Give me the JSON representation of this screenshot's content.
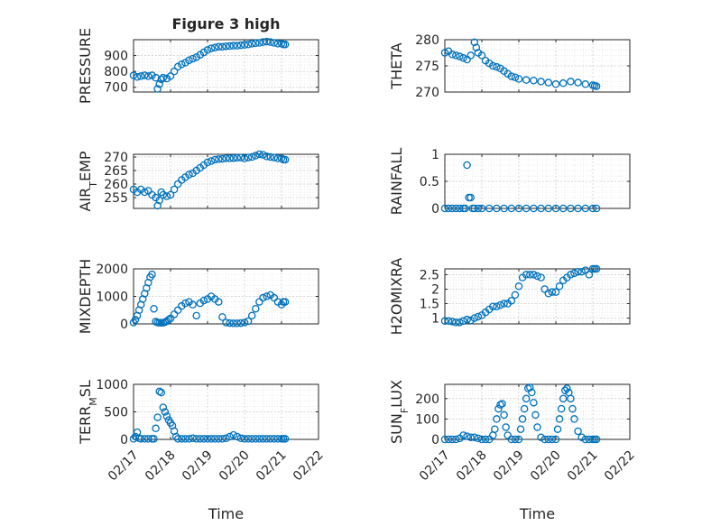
{
  "figure": {
    "colors": {
      "marker": "#0072BD",
      "grid": "#cfcfcf",
      "axis": "#262626"
    }
  },
  "chart_data": [
    {
      "type": "scatter",
      "title": "Figure 3 high",
      "ylabel": "PRESSURE",
      "xlabel": "",
      "ylim": [
        670,
        1000
      ],
      "yticks": [
        700,
        800,
        900
      ],
      "xlim": [
        0,
        5
      ],
      "xticklabels": [],
      "grid": true,
      "series": [
        {
          "marker": "circle",
          "x": [
            0,
            0.1,
            0.2,
            0.3,
            0.4,
            0.5,
            0.6,
            0.65,
            0.7,
            0.75,
            0.8,
            0.9,
            1.0,
            1.1,
            1.2,
            1.3,
            1.4,
            1.5,
            1.6,
            1.7,
            1.8,
            1.9,
            2.0,
            2.1,
            2.2,
            2.3,
            2.4,
            2.5,
            2.6,
            2.7,
            2.8,
            2.9,
            3.0,
            3.1,
            3.2,
            3.3,
            3.4,
            3.5,
            3.6,
            3.7,
            3.8,
            3.9,
            4.0,
            4.05,
            4.1
          ],
          "y": [
            775,
            765,
            770,
            775,
            770,
            775,
            760,
            690,
            720,
            750,
            760,
            755,
            770,
            800,
            830,
            845,
            855,
            870,
            880,
            890,
            905,
            920,
            935,
            945,
            950,
            955,
            955,
            958,
            960,
            962,
            962,
            965,
            967,
            970,
            975,
            978,
            980,
            985,
            988,
            985,
            980,
            975,
            975,
            970,
            970
          ]
        }
      ]
    },
    {
      "type": "scatter",
      "title": "",
      "ylabel": "THETA",
      "xlabel": "",
      "ylim": [
        270,
        280
      ],
      "yticks": [
        270,
        275,
        280
      ],
      "xlim": [
        0,
        5
      ],
      "xticklabels": [],
      "grid": true,
      "series": [
        {
          "marker": "circle",
          "x": [
            0,
            0.1,
            0.2,
            0.3,
            0.4,
            0.5,
            0.6,
            0.7,
            0.8,
            0.85,
            0.9,
            1.0,
            1.1,
            1.2,
            1.3,
            1.4,
            1.5,
            1.6,
            1.7,
            1.8,
            1.9,
            2.0,
            2.2,
            2.4,
            2.6,
            2.8,
            3.0,
            3.2,
            3.4,
            3.6,
            3.8,
            4.0,
            4.05,
            4.1
          ],
          "y": [
            277.5,
            277.8,
            277.2,
            277.0,
            276.8,
            276.5,
            276.2,
            277.0,
            279.5,
            278.5,
            277.5,
            277.0,
            276.0,
            275.5,
            275.0,
            274.8,
            274.5,
            274.0,
            273.5,
            273.0,
            272.8,
            272.5,
            272.3,
            272.2,
            272.0,
            271.8,
            271.5,
            271.7,
            272.0,
            271.8,
            271.5,
            271.3,
            271.2,
            271.1
          ]
        }
      ]
    },
    {
      "type": "scatter",
      "title": "",
      "ylabel": "AIR_TEMP",
      "xlabel": "",
      "ylim": [
        251,
        271
      ],
      "yticks": [
        255,
        260,
        265,
        270
      ],
      "xlim": [
        0,
        5
      ],
      "xticklabels": [],
      "grid": true,
      "series": [
        {
          "marker": "circle",
          "x": [
            0,
            0.1,
            0.2,
            0.3,
            0.4,
            0.5,
            0.6,
            0.65,
            0.7,
            0.75,
            0.8,
            0.9,
            1.0,
            1.1,
            1.2,
            1.3,
            1.4,
            1.5,
            1.6,
            1.7,
            1.8,
            1.9,
            2.0,
            2.1,
            2.2,
            2.3,
            2.4,
            2.5,
            2.6,
            2.7,
            2.8,
            2.9,
            3.0,
            3.1,
            3.2,
            3.3,
            3.4,
            3.5,
            3.6,
            3.7,
            3.8,
            3.9,
            4.0,
            4.05,
            4.1
          ],
          "y": [
            258,
            257,
            258,
            257,
            257.5,
            256,
            255,
            252,
            254,
            257,
            256,
            255.5,
            256,
            258,
            260,
            261.5,
            262.5,
            263.5,
            264,
            265,
            266,
            267,
            268,
            268.5,
            269,
            269.2,
            269.3,
            269.5,
            269.5,
            269.6,
            269.7,
            269.8,
            269.5,
            269.8,
            270,
            270.5,
            271,
            270.8,
            270.2,
            270,
            269.8,
            269.5,
            269.5,
            269,
            269
          ]
        }
      ]
    },
    {
      "type": "scatter",
      "title": "",
      "ylabel": "RAINFALL",
      "xlabel": "",
      "ylim": [
        0,
        1
      ],
      "yticks": [
        0,
        0.5,
        1
      ],
      "xlim": [
        0,
        5
      ],
      "xticklabels": [],
      "grid": true,
      "series": [
        {
          "marker": "circle",
          "x": [
            0,
            0.1,
            0.2,
            0.3,
            0.4,
            0.5,
            0.55,
            0.6,
            0.65,
            0.7,
            0.75,
            0.8,
            0.9,
            1.0,
            1.2,
            1.4,
            1.6,
            1.8,
            2.0,
            2.2,
            2.4,
            2.6,
            2.8,
            3.0,
            3.2,
            3.4,
            3.6,
            3.8,
            4.0,
            4.1
          ],
          "y": [
            0,
            0,
            0,
            0,
            0,
            0,
            0,
            0.8,
            0.2,
            0.2,
            0,
            0,
            0,
            0,
            0,
            0,
            0,
            0,
            0,
            0,
            0,
            0,
            0,
            0,
            0,
            0,
            0,
            0,
            0,
            0
          ]
        }
      ]
    },
    {
      "type": "scatter",
      "title": "",
      "ylabel": "MIXDEPTH",
      "xlabel": "",
      "ylim": [
        0,
        2000
      ],
      "yticks": [
        0,
        1000,
        2000
      ],
      "xlim": [
        0,
        5
      ],
      "xticklabels": [],
      "grid": true,
      "series": [
        {
          "marker": "circle",
          "x": [
            0,
            0.05,
            0.1,
            0.15,
            0.2,
            0.25,
            0.3,
            0.35,
            0.4,
            0.45,
            0.5,
            0.55,
            0.6,
            0.65,
            0.7,
            0.75,
            0.8,
            0.85,
            0.9,
            0.95,
            1.0,
            1.1,
            1.2,
            1.3,
            1.4,
            1.5,
            1.6,
            1.7,
            1.8,
            1.9,
            2.0,
            2.1,
            2.2,
            2.3,
            2.4,
            2.5,
            2.6,
            2.7,
            2.8,
            2.9,
            3.0,
            3.1,
            3.2,
            3.3,
            3.4,
            3.5,
            3.6,
            3.7,
            3.8,
            3.9,
            4.0,
            4.05,
            4.1
          ],
          "y": [
            50,
            150,
            300,
            500,
            700,
            900,
            1100,
            1300,
            1500,
            1700,
            1800,
            550,
            80,
            50,
            40,
            40,
            40,
            60,
            100,
            150,
            200,
            350,
            500,
            650,
            750,
            800,
            700,
            300,
            750,
            850,
            900,
            1000,
            900,
            800,
            250,
            50,
            30,
            20,
            20,
            30,
            50,
            100,
            300,
            550,
            800,
            950,
            1000,
            1050,
            950,
            800,
            700,
            800,
            800
          ]
        }
      ]
    },
    {
      "type": "scatter",
      "title": "",
      "ylabel": "H2OMIXRA",
      "xlabel": "",
      "ylim": [
        0.8,
        2.7
      ],
      "yticks": [
        1,
        1.5,
        2,
        2.5
      ],
      "xlim": [
        0,
        5
      ],
      "xticklabels": [],
      "grid": true,
      "series": [
        {
          "marker": "circle",
          "x": [
            0,
            0.1,
            0.2,
            0.3,
            0.4,
            0.5,
            0.6,
            0.7,
            0.8,
            0.9,
            1.0,
            1.1,
            1.2,
            1.3,
            1.4,
            1.5,
            1.6,
            1.7,
            1.8,
            1.9,
            2.0,
            2.1,
            2.2,
            2.3,
            2.4,
            2.5,
            2.6,
            2.7,
            2.8,
            2.9,
            3.0,
            3.1,
            3.2,
            3.3,
            3.4,
            3.5,
            3.6,
            3.7,
            3.8,
            3.9,
            4.0,
            4.05,
            4.1
          ],
          "y": [
            0.9,
            0.9,
            0.88,
            0.85,
            0.85,
            0.9,
            0.95,
            0.92,
            1.0,
            1.05,
            1.1,
            1.2,
            1.3,
            1.4,
            1.4,
            1.45,
            1.5,
            1.5,
            1.6,
            1.8,
            2.1,
            2.4,
            2.5,
            2.5,
            2.5,
            2.45,
            2.4,
            2.0,
            1.85,
            1.9,
            1.9,
            2.1,
            2.3,
            2.4,
            2.5,
            2.55,
            2.6,
            2.6,
            2.65,
            2.5,
            2.7,
            2.7,
            2.7
          ]
        }
      ]
    },
    {
      "type": "scatter",
      "title": "",
      "ylabel": "TERR_MSL",
      "xlabel": "Time",
      "ylim": [
        0,
        1000
      ],
      "yticks": [
        0,
        500,
        1000
      ],
      "xlim": [
        0,
        5
      ],
      "xticklabels": [
        "02/17",
        "02/18",
        "02/19",
        "02/20",
        "02/21",
        "02/22"
      ],
      "grid": true,
      "series": [
        {
          "marker": "circle",
          "x": [
            0,
            0.05,
            0.1,
            0.15,
            0.2,
            0.3,
            0.4,
            0.5,
            0.55,
            0.6,
            0.65,
            0.7,
            0.75,
            0.8,
            0.85,
            0.9,
            0.95,
            1.0,
            1.05,
            1.1,
            1.15,
            1.2,
            1.3,
            1.4,
            1.5,
            1.6,
            1.7,
            1.8,
            1.9,
            2.0,
            2.1,
            2.2,
            2.3,
            2.4,
            2.5,
            2.6,
            2.7,
            2.8,
            2.9,
            3.0,
            3.1,
            3.2,
            3.3,
            3.4,
            3.5,
            3.6,
            3.7,
            3.8,
            3.9,
            4.0,
            4.05,
            4.1
          ],
          "y": [
            10,
            50,
            130,
            20,
            10,
            10,
            10,
            10,
            10,
            200,
            400,
            870,
            850,
            580,
            500,
            420,
            350,
            300,
            250,
            150,
            50,
            10,
            10,
            10,
            10,
            20,
            10,
            10,
            10,
            10,
            10,
            10,
            10,
            10,
            20,
            50,
            80,
            50,
            20,
            10,
            10,
            10,
            10,
            10,
            10,
            10,
            10,
            10,
            10,
            10,
            10,
            10
          ]
        }
      ]
    },
    {
      "type": "scatter",
      "title": "",
      "ylabel": "SUN_FLUX",
      "xlabel": "Time",
      "ylim": [
        0,
        270
      ],
      "yticks": [
        0,
        100,
        200
      ],
      "xlim": [
        0,
        5
      ],
      "xticklabels": [
        "02/17",
        "02/18",
        "02/19",
        "02/20",
        "02/21",
        "02/22"
      ],
      "grid": true,
      "series": [
        {
          "marker": "circle",
          "x": [
            0,
            0.1,
            0.2,
            0.3,
            0.4,
            0.5,
            0.6,
            0.7,
            0.8,
            0.9,
            1.0,
            1.1,
            1.2,
            1.3,
            1.35,
            1.4,
            1.45,
            1.5,
            1.55,
            1.6,
            1.65,
            1.7,
            1.8,
            1.9,
            2.0,
            2.05,
            2.1,
            2.15,
            2.2,
            2.25,
            2.3,
            2.35,
            2.4,
            2.45,
            2.5,
            2.6,
            2.7,
            2.8,
            2.9,
            3.0,
            3.05,
            3.1,
            3.15,
            3.2,
            3.25,
            3.3,
            3.35,
            3.4,
            3.45,
            3.5,
            3.6,
            3.7,
            3.8,
            3.9,
            4.0,
            4.05,
            4.1
          ],
          "y": [
            0,
            0,
            0,
            0,
            5,
            20,
            15,
            10,
            10,
            5,
            0,
            0,
            0,
            20,
            50,
            100,
            150,
            170,
            175,
            120,
            60,
            20,
            0,
            0,
            0,
            50,
            100,
            150,
            200,
            250,
            255,
            230,
            180,
            120,
            60,
            10,
            0,
            0,
            0,
            0,
            50,
            100,
            150,
            200,
            240,
            250,
            230,
            200,
            150,
            100,
            40,
            10,
            0,
            0,
            0,
            0,
            0
          ]
        }
      ]
    }
  ]
}
